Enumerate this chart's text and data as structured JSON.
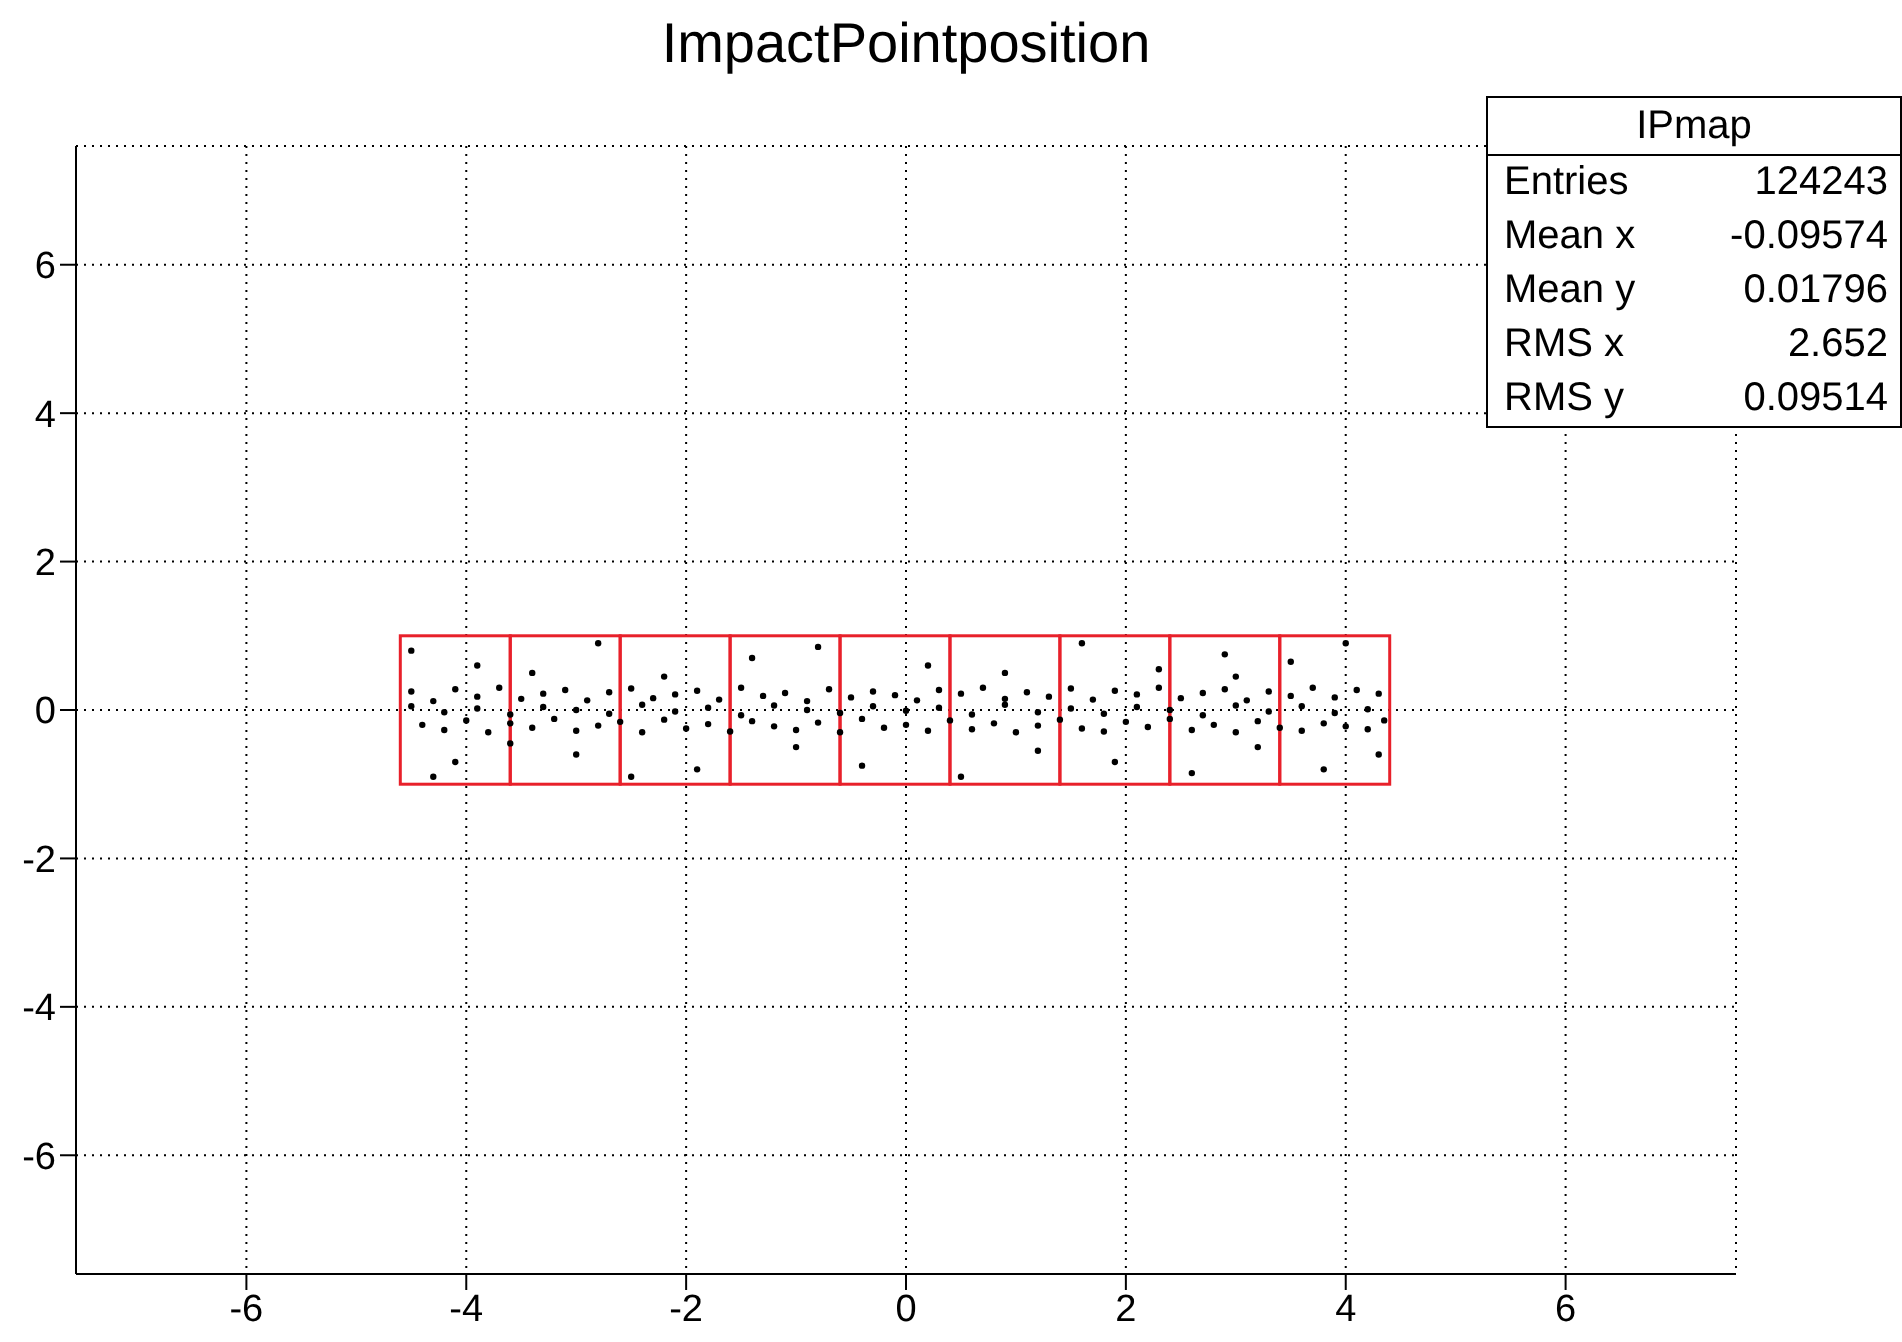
{
  "chart_data": {
    "type": "scatter",
    "title": "ImpactPointposition",
    "xlim": [
      -7.55,
      7.55
    ],
    "ylim": [
      -7.6,
      7.6
    ],
    "xticks": [
      -6,
      -4,
      -2,
      0,
      2,
      4,
      6
    ],
    "yticks": [
      -6,
      -4,
      -2,
      0,
      2,
      4,
      6
    ],
    "grid": true,
    "marker": "circle",
    "annotations": [
      "IPmap",
      "Entries",
      "124243",
      "Mean x",
      "-0.09574",
      "Mean y",
      "0.01796",
      "RMS x",
      "2.652",
      "RMS y",
      "0.09514"
    ],
    "series": [
      {
        "color": "#000000",
        "x": [
          -4.5,
          -4.3,
          -4.1,
          -3.9,
          -3.7,
          -3.5,
          -3.3,
          -3.1,
          -2.9,
          -2.7,
          -2.5,
          -2.3,
          -2.1,
          -1.9,
          -1.7,
          -1.5,
          -1.3,
          -1.1,
          -0.9,
          -0.7,
          -0.5,
          -0.3,
          -0.1,
          0.1,
          0.3,
          0.5,
          0.7,
          0.9,
          1.1,
          1.3,
          1.5,
          1.7,
          1.9,
          2.1,
          2.3,
          2.5,
          2.7,
          2.9,
          3.1,
          3.3,
          3.5,
          3.7,
          3.9,
          4.1,
          4.3,
          -4.4,
          -4.2,
          -4.0,
          -3.8,
          -3.6,
          -3.4,
          -3.2,
          -3.0,
          -2.8,
          -2.6,
          -2.4,
          -2.2,
          -2.0,
          -1.8,
          -1.6,
          -1.4,
          -1.2,
          -1.0,
          -0.8,
          -0.6,
          -0.4,
          -0.2,
          0,
          0.2,
          0.4,
          0.6,
          0.8,
          1.0,
          1.2,
          1.4,
          1.6,
          1.8,
          2.0,
          2.2,
          2.4,
          2.6,
          2.8,
          3.0,
          3.2,
          3.4,
          3.6,
          3.8,
          4.0,
          4.2,
          4.35,
          -4.5,
          -4.2,
          -3.9,
          -3.6,
          -3.3,
          -3.0,
          -2.7,
          -2.4,
          -2.1,
          -1.8,
          -1.5,
          -1.2,
          -0.9,
          -0.6,
          -0.3,
          0,
          0.3,
          0.6,
          0.9,
          1.2,
          1.5,
          1.8,
          2.1,
          2.4,
          2.7,
          3.0,
          3.3,
          3.6,
          3.9,
          4.2,
          -4.5,
          -4.1,
          -3.9,
          -4.3,
          -3.4,
          -3.0,
          -2.8,
          -2.2,
          -1.9,
          -1.4,
          -1.0,
          -0.8,
          -0.4,
          0.2,
          0.5,
          0.9,
          1.2,
          1.6,
          1.9,
          2.3,
          2.6,
          2.9,
          3.2,
          3.5,
          3.8,
          4.0,
          4.3,
          -3.6,
          -2.5,
          3.0
        ],
        "values": [
          0.25,
          0.12,
          0.28,
          0.18,
          0.3,
          0.15,
          0.22,
          0.27,
          0.13,
          0.24,
          0.29,
          0.16,
          0.21,
          0.26,
          0.14,
          0.3,
          0.19,
          0.23,
          0.12,
          0.28,
          0.17,
          0.25,
          0.2,
          0.13,
          0.27,
          0.22,
          0.3,
          0.15,
          0.24,
          0.18,
          0.29,
          0.14,
          0.26,
          0.21,
          0.3,
          0.16,
          0.23,
          0.28,
          0.13,
          0.25,
          0.19,
          0.3,
          0.17,
          0.27,
          0.22,
          -0.2,
          -0.27,
          -0.14,
          -0.3,
          -0.18,
          -0.24,
          -0.12,
          -0.28,
          -0.21,
          -0.16,
          -0.3,
          -0.13,
          -0.25,
          -0.19,
          -0.29,
          -0.15,
          -0.22,
          -0.27,
          -0.17,
          -0.3,
          -0.12,
          -0.24,
          -0.2,
          -0.28,
          -0.14,
          -0.26,
          -0.18,
          -0.3,
          -0.21,
          -0.13,
          -0.25,
          -0.29,
          -0.16,
          -0.23,
          -0.12,
          -0.27,
          -0.2,
          -0.3,
          -0.15,
          -0.24,
          -0.28,
          -0.18,
          -0.22,
          -0.26,
          -0.14,
          0.05,
          -0.03,
          0.02,
          -0.06,
          0.04,
          0,
          -0.05,
          0.07,
          -0.02,
          0.03,
          -0.07,
          0.06,
          0,
          -0.04,
          0.05,
          -0.01,
          0.03,
          -0.06,
          0.07,
          -0.03,
          0.02,
          -0.05,
          0.04,
          0,
          -0.07,
          0.06,
          -0.02,
          0.05,
          -0.04,
          0.01,
          0.8,
          -0.7,
          0.6,
          -0.9,
          0.5,
          -0.6,
          0.9,
          0.45,
          -0.8,
          0.7,
          -0.5,
          0.85,
          -0.75,
          0.6,
          -0.9,
          0.5,
          -0.55,
          0.9,
          -0.7,
          0.55,
          -0.85,
          0.75,
          -0.5,
          0.65,
          -0.8,
          0.9,
          -0.6,
          -0.45,
          -0.9,
          0.45
        ]
      }
    ]
  }
}
